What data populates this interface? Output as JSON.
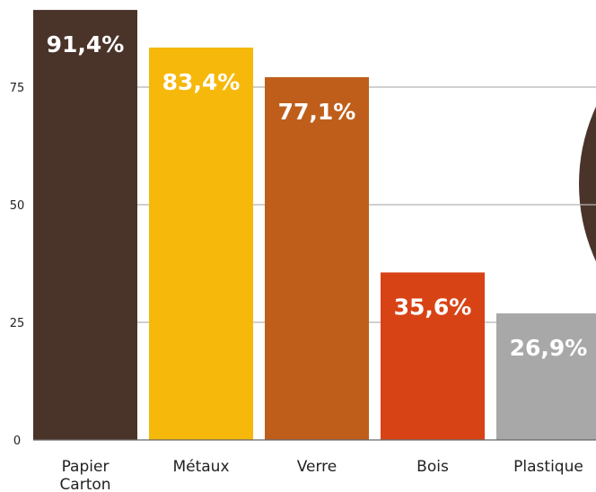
{
  "chart_data": {
    "type": "bar",
    "title": "",
    "xlabel": "",
    "ylabel": "",
    "ylim": [
      0,
      95
    ],
    "yticks": [
      0,
      25,
      50,
      75
    ],
    "grid": true,
    "legend": "none",
    "categories": [
      [
        "Papier",
        "Carton"
      ],
      [
        "Métaux"
      ],
      [
        "Verre"
      ],
      [
        "Bois"
      ],
      [
        "Plastique"
      ]
    ],
    "values": [
      91.4,
      83.4,
      77.1,
      35.6,
      26.9
    ],
    "value_labels": [
      "91,4%",
      "83,4%",
      "77,1%",
      "35,6%",
      "26,9%"
    ],
    "colors": [
      "#4a342a",
      "#f6b80a",
      "#bf5e1b",
      "#d84316",
      "#a9a8a8"
    ],
    "grid_color": "#b5b5b5",
    "axis_color": "#666666",
    "decoration_color": "#4a342a"
  }
}
